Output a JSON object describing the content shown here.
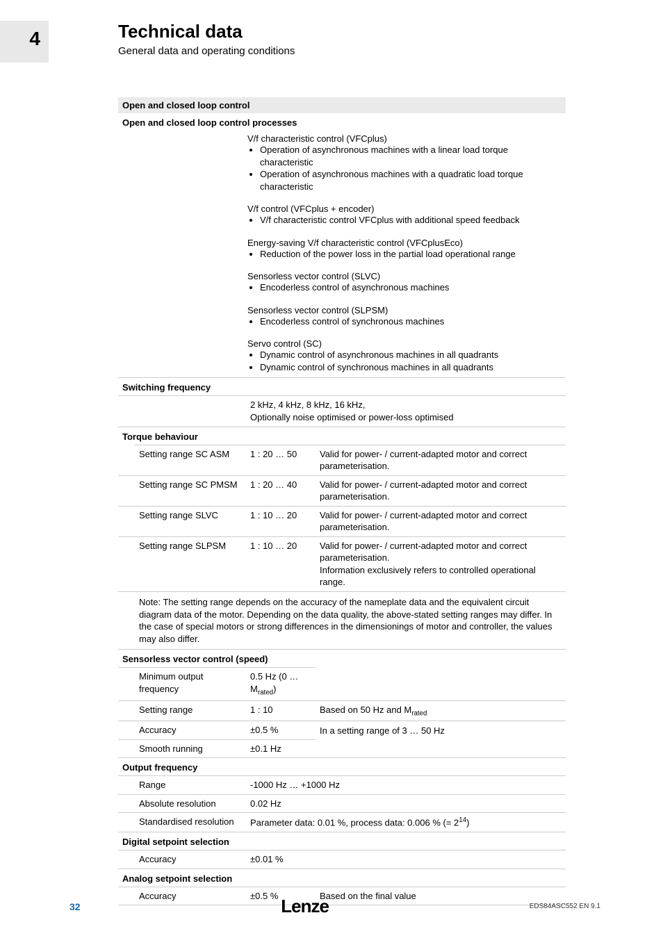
{
  "header": {
    "chapter_number": "4",
    "title": "Technical data",
    "subtitle": "General data and operating conditions"
  },
  "section_open_closed": {
    "heading": "Open and closed loop control",
    "processes_heading": "Open and closed loop control processes",
    "blocks": [
      {
        "title": "V/f characteristic control (VFCplus)",
        "bullets": [
          "Operation of asynchronous machines with a linear load torque characteristic",
          "Operation of asynchronous machines with a quadratic load torque characteristic"
        ]
      },
      {
        "title": "V/f control (VFCplus + encoder)",
        "bullets": [
          "V/f characteristic control VFCplus with additional speed feedback"
        ]
      },
      {
        "title": "Energy-saving V/f characteristic control (VFCplusEco)",
        "bullets": [
          "Reduction of the power loss in the partial load operational range"
        ]
      },
      {
        "title": "Sensorless vector control (SLVC)",
        "bullets": [
          "Encoderless control of asynchronous machines"
        ]
      },
      {
        "title": "Sensorless vector control (SLPSM)",
        "bullets": [
          "Encoderless control of synchronous machines"
        ]
      },
      {
        "title": "Servo control (SC)",
        "bullets": [
          "Dynamic control of asynchronous machines in all quadrants",
          "Dynamic control of synchronous machines in all quadrants"
        ]
      }
    ]
  },
  "switching_frequency": {
    "heading": "Switching frequency",
    "line1": "2 kHz, 4 kHz, 8 kHz, 16 kHz,",
    "line2": "Optionally noise optimised or power-loss optimised"
  },
  "torque": {
    "heading": "Torque behaviour",
    "rows": [
      {
        "label": "Setting range SC ASM",
        "value": "1 : 20 … 50",
        "desc": "Valid for power- / current-adapted motor and correct parameterisation."
      },
      {
        "label": "Setting range SC PMSM",
        "value": "1 : 20 … 40",
        "desc": "Valid for power- / current-adapted motor and correct parameterisation."
      },
      {
        "label": "Setting range SLVC",
        "value": "1 : 10 … 20",
        "desc": "Valid for power- / current-adapted motor and correct parameterisation."
      },
      {
        "label": "Setting range SLPSM",
        "value": "1 : 10 … 20",
        "desc": "Valid for power- / current-adapted motor and correct parameterisation.\nInformation exclusively refers to controlled operational range."
      }
    ],
    "note": "Note: The setting range depends on the accuracy of the nameplate data and the equivalent circuit diagram data of the motor. Depending on the data quality, the above-stated setting ranges may differ. In the case of special motors or strong differences in the dimensionings of motor and controller, the values may also differ."
  },
  "slvc_speed": {
    "heading": "Sensorless vector control (speed)",
    "min_output_label": "Minimum output frequency",
    "min_output_value_prefix": "0.5 Hz (0 … M",
    "min_output_value_sub": "rated",
    "min_output_value_suffix": ")",
    "setting_range_label": "Setting range",
    "setting_range_value": "1 : 10",
    "setting_range_desc_prefix": "Based on 50 Hz and M",
    "setting_range_desc_sub": "rated",
    "accuracy_label": "Accuracy",
    "accuracy_value": "±0.5 %",
    "smooth_label": "Smooth running",
    "smooth_value": "±0.1 Hz",
    "range_desc": "In a setting range of 3 … 50 Hz"
  },
  "output_freq": {
    "heading": "Output frequency",
    "range_label": "Range",
    "range_value": "-1000 Hz … +1000 Hz",
    "abs_label": "Absolute resolution",
    "abs_value": "0.02 Hz",
    "std_label": "Standardised resolution",
    "std_value_prefix": "Parameter data: 0.01 %, process data: 0.006 % (= 2",
    "std_value_sup": "14",
    "std_value_suffix": ")"
  },
  "digital_setpoint": {
    "heading": "Digital setpoint selection",
    "accuracy_label": "Accuracy",
    "accuracy_value": "±0.01 %"
  },
  "analog_setpoint": {
    "heading": "Analog setpoint selection",
    "accuracy_label": "Accuracy",
    "accuracy_value": "±0.5 %",
    "accuracy_desc": "Based on the final value"
  },
  "footer": {
    "page": "32",
    "brand": "Lenze",
    "doc_id": "EDS84ASC552 EN 9.1"
  }
}
